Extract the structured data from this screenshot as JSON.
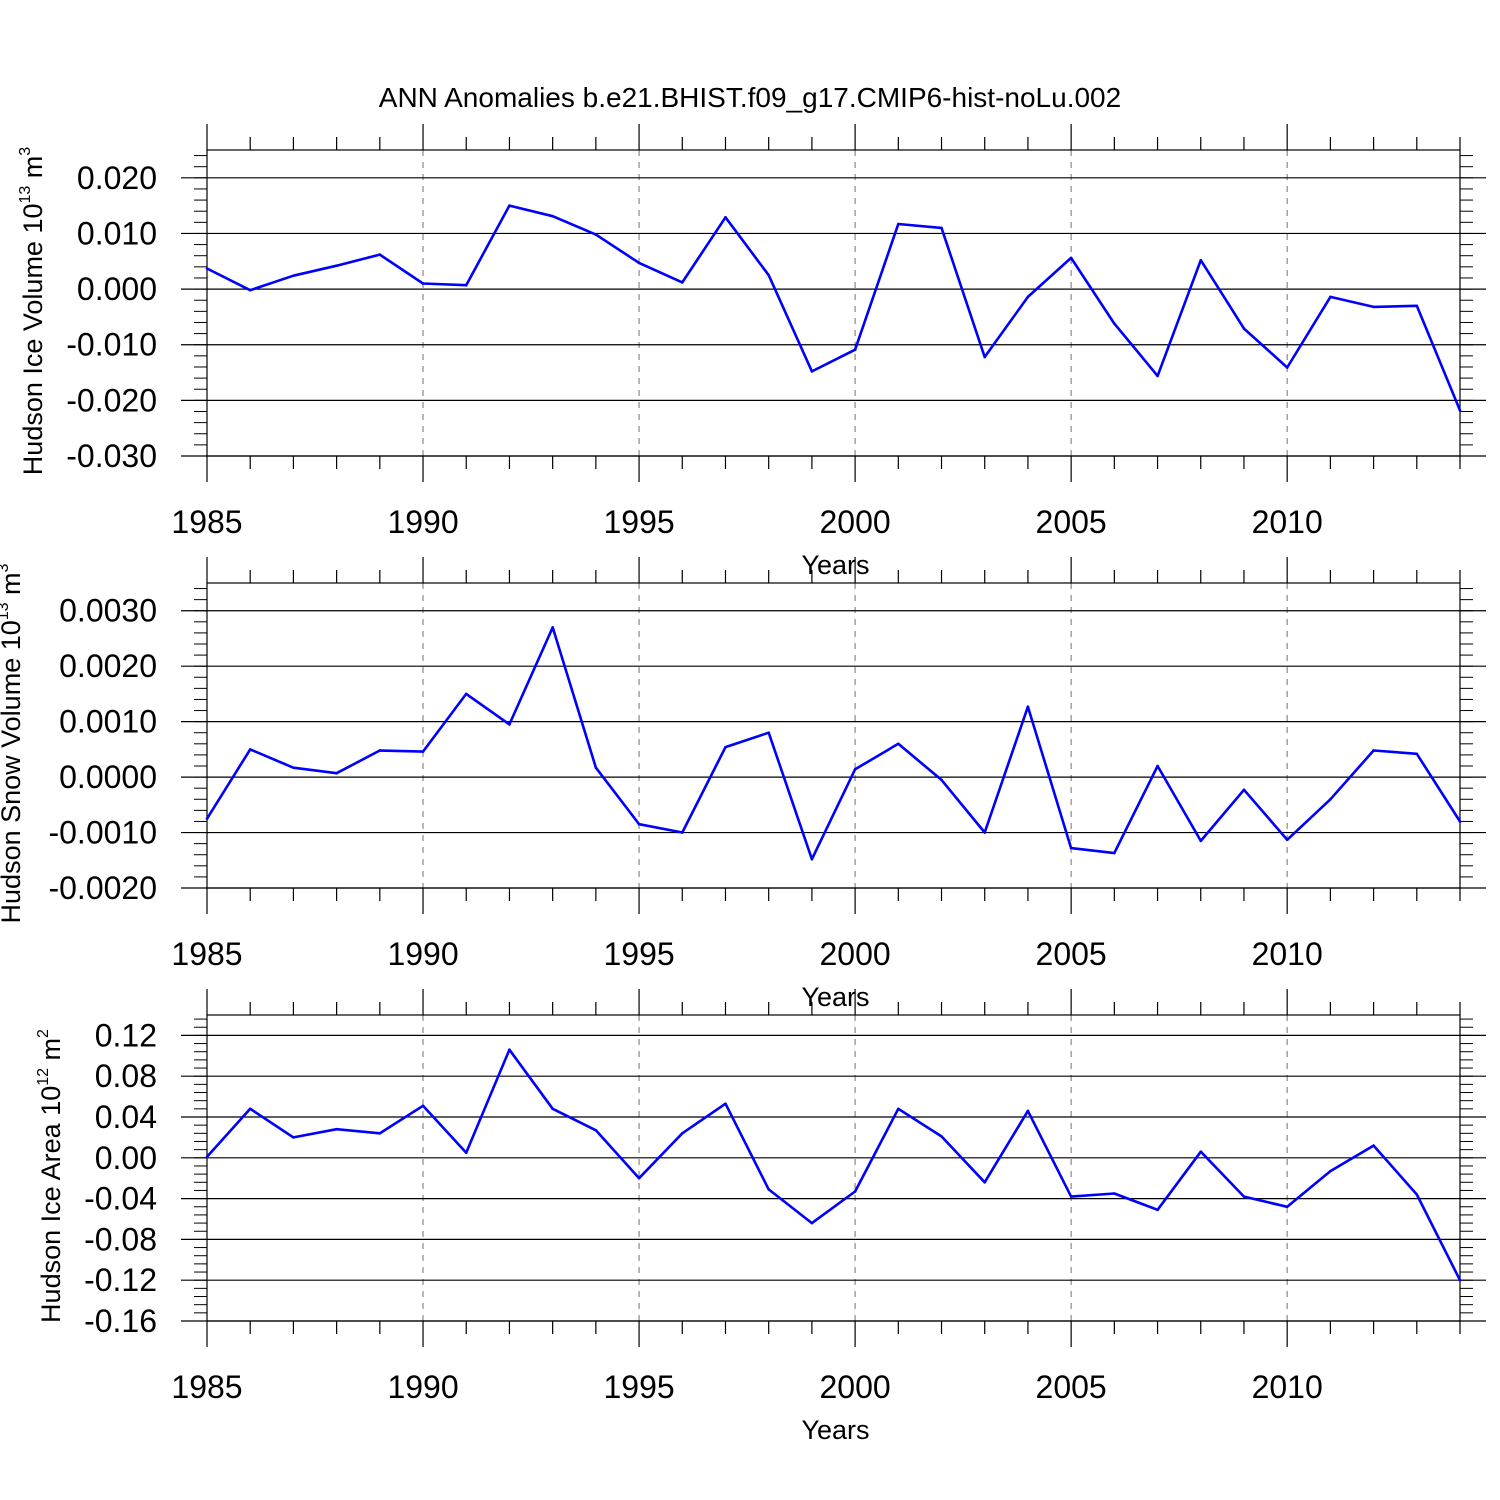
{
  "title": "ANN Anomalies b.e21.BHIST.f09_g17.CMIP6-hist-noLu.002",
  "style": {
    "line_color": "#0000ff",
    "grid_color": "#8a8a8a",
    "axis_color": "#000000",
    "background": "#ffffff"
  },
  "chart_data": [
    {
      "type": "line",
      "ylabel": {
        "main": "Hudson Ice Volume 10",
        "exp": "13",
        "unit": " m",
        "unit_exp": "3"
      },
      "xlabel": "Years",
      "xlim": [
        1985,
        2014
      ],
      "ylim": [
        -0.03,
        0.025
      ],
      "yticks": [
        0.02,
        0.01,
        0.0,
        -0.01,
        -0.02,
        -0.03
      ],
      "yticklabels": [
        "0.020",
        "0.010",
        "0.000",
        "-0.010",
        "-0.020",
        "-0.030"
      ],
      "yminor_step": 0.002,
      "xticks": [
        1985,
        1990,
        1995,
        2000,
        2005,
        2010
      ],
      "xticklabels": [
        "1985",
        "1990",
        "1995",
        "2000",
        "2005",
        "2010"
      ],
      "grid": "vertical dashed at major x ticks",
      "x": [
        1985,
        1986,
        1987,
        1988,
        1989,
        1990,
        1991,
        1992,
        1993,
        1994,
        1995,
        1996,
        1997,
        1998,
        1999,
        2000,
        2001,
        2002,
        2003,
        2004,
        2005,
        2006,
        2007,
        2008,
        2009,
        2010,
        2011,
        2012,
        2013,
        2014
      ],
      "values": [
        0.0037,
        -0.0002,
        0.0024,
        0.0042,
        0.0062,
        0.001,
        0.0007,
        0.015,
        0.0131,
        0.0098,
        0.0047,
        0.0012,
        0.0129,
        0.0025,
        -0.0148,
        -0.0109,
        0.0117,
        0.011,
        -0.0122,
        -0.0014,
        0.0056,
        -0.0062,
        -0.0156,
        0.0052,
        -0.0071,
        -0.0141,
        -0.0014,
        -0.0032,
        -0.003,
        -0.0218
      ]
    },
    {
      "type": "line",
      "ylabel": {
        "main": "Hudson Snow Volume 10",
        "exp": "13",
        "unit": " m",
        "unit_exp": "3"
      },
      "xlabel": "Years",
      "xlim": [
        1985,
        2014
      ],
      "ylim": [
        -0.002,
        0.0035
      ],
      "yticks": [
        0.003,
        0.002,
        0.001,
        0.0,
        -0.001,
        -0.002
      ],
      "yticklabels": [
        "0.0030",
        "0.0020",
        "0.0010",
        "0.0000",
        "-0.0010",
        "-0.0020"
      ],
      "yminor_step": 0.0002,
      "xticks": [
        1985,
        1990,
        1995,
        2000,
        2005,
        2010
      ],
      "xticklabels": [
        "1985",
        "1990",
        "1995",
        "2000",
        "2005",
        "2010"
      ],
      "grid": "vertical dashed at major x ticks",
      "x": [
        1985,
        1986,
        1987,
        1988,
        1989,
        1990,
        1991,
        1992,
        1993,
        1994,
        1995,
        1996,
        1997,
        1998,
        1999,
        2000,
        2001,
        2002,
        2003,
        2004,
        2005,
        2006,
        2007,
        2008,
        2009,
        2010,
        2011,
        2012,
        2013,
        2014
      ],
      "values": [
        -0.00075,
        0.0005,
        0.00017,
        7e-05,
        0.00048,
        0.00046,
        0.0015,
        0.00095,
        0.0027,
        0.00017,
        -0.00085,
        -0.001,
        0.00054,
        0.0008,
        -0.00148,
        0.00014,
        0.0006,
        -5e-05,
        -0.001,
        0.00127,
        -0.00128,
        -0.00137,
        0.0002,
        -0.00115,
        -0.00023,
        -0.00113,
        -0.0004,
        0.00048,
        0.00042,
        -0.0008
      ]
    },
    {
      "type": "line",
      "ylabel": {
        "main": "Hudson Ice Area 10",
        "exp": "12",
        "unit": " m",
        "unit_exp": "2"
      },
      "xlabel": "Years",
      "xlim": [
        1985,
        2014
      ],
      "ylim": [
        -0.16,
        0.14
      ],
      "yticks": [
        0.12,
        0.08,
        0.04,
        0.0,
        -0.04,
        -0.08,
        -0.12,
        -0.16
      ],
      "yticklabels": [
        "0.12",
        "0.08",
        "0.04",
        "0.00",
        "-0.04",
        "-0.08",
        "-0.12",
        "-0.16"
      ],
      "yminor_step": 0.008,
      "xticks": [
        1985,
        1990,
        1995,
        2000,
        2005,
        2010
      ],
      "xticklabels": [
        "1985",
        "1990",
        "1995",
        "2000",
        "2005",
        "2010"
      ],
      "grid": "vertical dashed at major x ticks",
      "x": [
        1985,
        1986,
        1987,
        1988,
        1989,
        1990,
        1991,
        1992,
        1993,
        1994,
        1995,
        1996,
        1997,
        1998,
        1999,
        2000,
        2001,
        2002,
        2003,
        2004,
        2005,
        2006,
        2007,
        2008,
        2009,
        2010,
        2011,
        2012,
        2013,
        2014
      ],
      "values": [
        0.001,
        0.048,
        0.02,
        0.028,
        0.024,
        0.051,
        0.005,
        0.106,
        0.048,
        0.027,
        -0.02,
        0.024,
        0.053,
        -0.031,
        -0.064,
        -0.033,
        0.048,
        0.021,
        -0.024,
        0.046,
        -0.038,
        -0.035,
        -0.051,
        0.006,
        -0.038,
        -0.048,
        -0.013,
        0.012,
        -0.036,
        -0.12
      ]
    }
  ]
}
